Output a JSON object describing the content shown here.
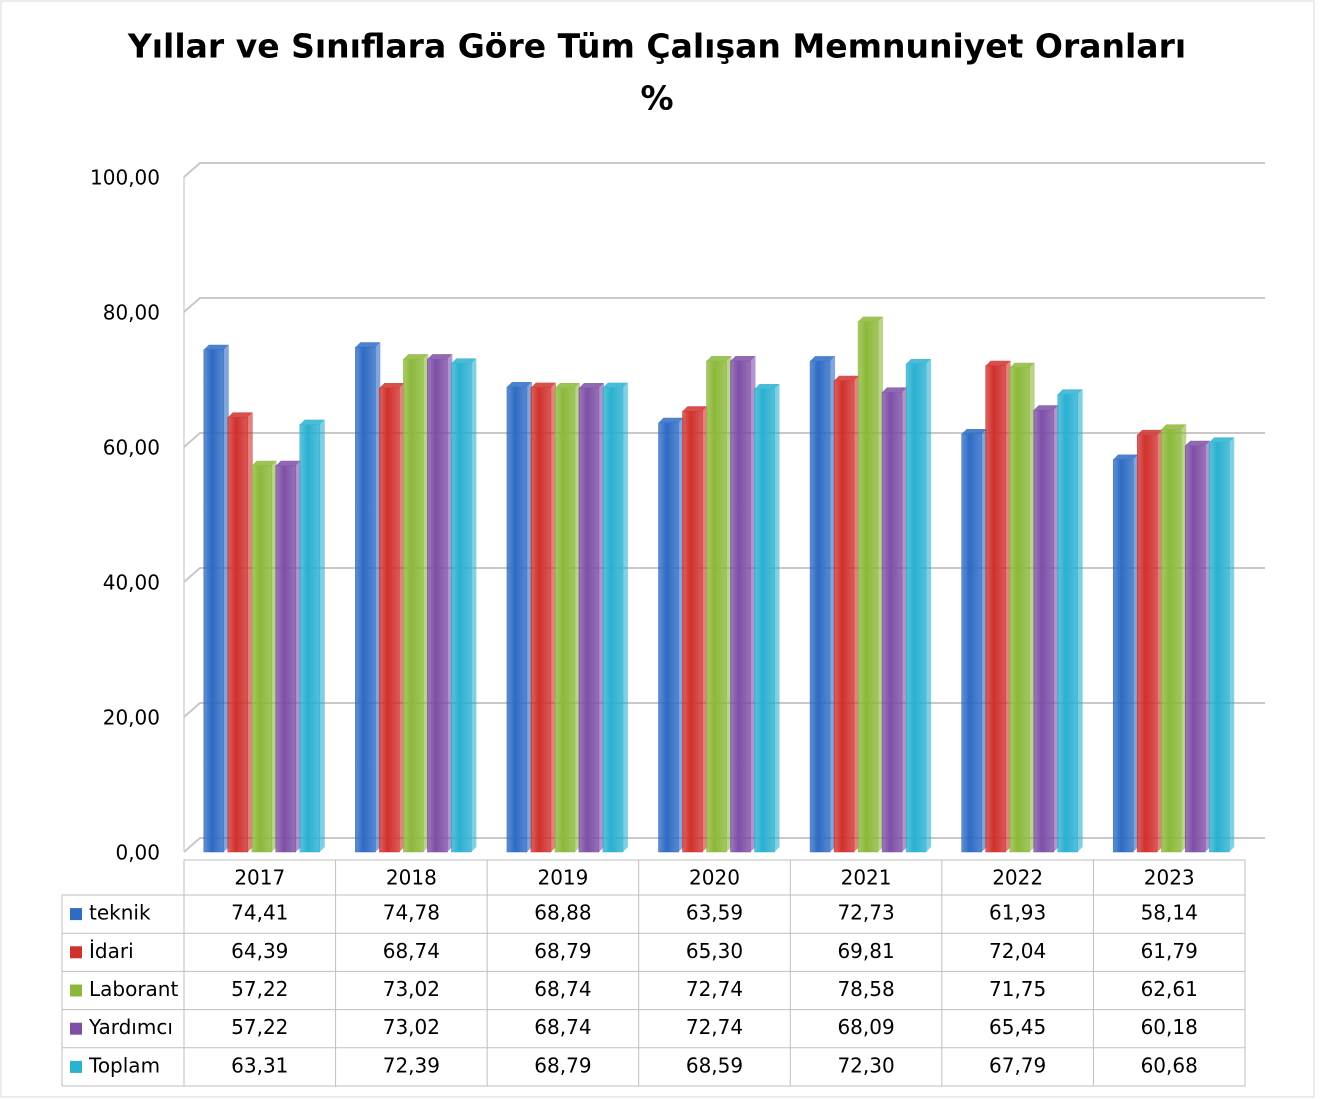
{
  "chart_data": {
    "type": "bar",
    "title": "Yıllar ve Sınıflara Göre Tüm Çalışan Memnuniyet Oranları",
    "subtitle": "%",
    "categories": [
      "2017",
      "2018",
      "2019",
      "2020",
      "2021",
      "2022",
      "2023"
    ],
    "series": [
      {
        "name": "teknik",
        "color": "#2e6bc4",
        "values": [
          74.41,
          74.78,
          68.88,
          63.59,
          72.73,
          61.93,
          58.14
        ],
        "value_labels": [
          "74,41",
          "74,78",
          "68,88",
          "63,59",
          "72,73",
          "61,93",
          "58,14"
        ]
      },
      {
        "name": "İdari",
        "color": "#d0312d",
        "values": [
          64.39,
          68.74,
          68.79,
          65.3,
          69.81,
          72.04,
          61.79
        ],
        "value_labels": [
          "64,39",
          "68,74",
          "68,79",
          "65,30",
          "69,81",
          "72,04",
          "61,79"
        ]
      },
      {
        "name": "Laborant",
        "color": "#8cb83a",
        "values": [
          57.22,
          73.02,
          68.74,
          72.74,
          78.58,
          71.75,
          62.61
        ],
        "value_labels": [
          "57,22",
          "73,02",
          "68,74",
          "72,74",
          "78,58",
          "71,75",
          "62,61"
        ]
      },
      {
        "name": "Yardımcı",
        "color": "#7e4fa6",
        "values": [
          57.22,
          73.02,
          68.74,
          72.74,
          68.09,
          65.45,
          60.18
        ],
        "value_labels": [
          "57,22",
          "73,02",
          "68,74",
          "72,74",
          "68,09",
          "65,45",
          "60,18"
        ]
      },
      {
        "name": "Toplam",
        "color": "#2ab0d0",
        "values": [
          63.31,
          72.39,
          68.79,
          68.59,
          72.3,
          67.79,
          60.68
        ],
        "value_labels": [
          "63,31",
          "72,39",
          "68,79",
          "68,59",
          "72,30",
          "67,79",
          "60,68"
        ]
      }
    ],
    "ylim": [
      0,
      100
    ],
    "yticks": [
      {
        "value": 0,
        "label": "0,00"
      },
      {
        "value": 20,
        "label": "20,00"
      },
      {
        "value": 40,
        "label": "40,00"
      },
      {
        "value": 60,
        "label": "60,00"
      },
      {
        "value": 80,
        "label": "80,00"
      },
      {
        "value": 100,
        "label": "100,00"
      }
    ],
    "grid": true
  }
}
